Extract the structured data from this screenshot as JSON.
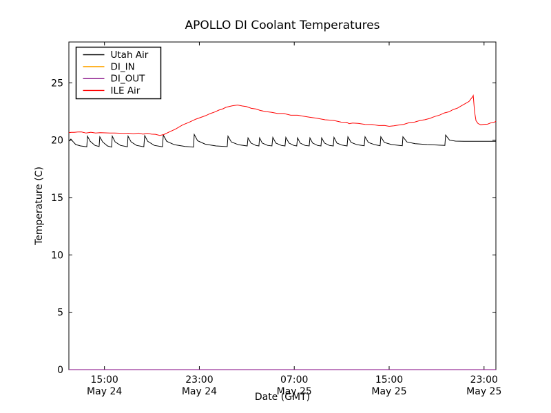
{
  "chart_data": {
    "type": "line",
    "title": "APOLLO DI Coolant Temperatures",
    "xlabel": "Date (GMT)",
    "ylabel": "Temperature (C)",
    "x_axis_note": "hours since May 24 12:00 GMT, total span 36 h",
    "xlim_hours": [
      0,
      36
    ],
    "ylim": [
      0,
      28.56
    ],
    "y_ticks": [
      0,
      5,
      10,
      15,
      20,
      25
    ],
    "x_ticks": [
      {
        "pos": 3,
        "time": "15:00",
        "date": "May 24"
      },
      {
        "pos": 11,
        "time": "23:00",
        "date": "May 24"
      },
      {
        "pos": 19,
        "time": "07:00",
        "date": "May 25"
      },
      {
        "pos": 27,
        "time": "15:00",
        "date": "May 25"
      },
      {
        "pos": 35,
        "time": "23:00",
        "date": "May 25"
      }
    ],
    "legend_position": "upper-left",
    "grid": false,
    "series": [
      {
        "name": "Utah Air",
        "color": "#000000",
        "points": [
          [
            0,
            19.9
          ],
          [
            0.17,
            20.1
          ],
          [
            0.35,
            19.88
          ],
          [
            0.58,
            19.62
          ],
          [
            0.99,
            19.5
          ],
          [
            1.51,
            19.42
          ],
          [
            1.57,
            20.35
          ],
          [
            1.8,
            19.9
          ],
          [
            2.2,
            19.55
          ],
          [
            2.55,
            19.45
          ],
          [
            2.61,
            20.3
          ],
          [
            2.85,
            19.85
          ],
          [
            3.25,
            19.5
          ],
          [
            3.6,
            19.4
          ],
          [
            3.66,
            20.35
          ],
          [
            3.9,
            19.85
          ],
          [
            4.35,
            19.55
          ],
          [
            4.93,
            19.42
          ],
          [
            4.99,
            20.35
          ],
          [
            5.25,
            19.85
          ],
          [
            5.7,
            19.55
          ],
          [
            6.32,
            19.42
          ],
          [
            6.39,
            20.4
          ],
          [
            6.65,
            19.9
          ],
          [
            7.2,
            19.55
          ],
          [
            7.89,
            19.42
          ],
          [
            7.96,
            20.45
          ],
          [
            8.25,
            19.9
          ],
          [
            8.9,
            19.6
          ],
          [
            9.8,
            19.45
          ],
          [
            10.51,
            19.4
          ],
          [
            10.57,
            20.5
          ],
          [
            10.85,
            19.95
          ],
          [
            11.5,
            19.65
          ],
          [
            12.4,
            19.5
          ],
          [
            13.35,
            19.44
          ],
          [
            13.41,
            20.35
          ],
          [
            13.7,
            19.85
          ],
          [
            14.3,
            19.6
          ],
          [
            15.03,
            19.5
          ],
          [
            15.1,
            20.2
          ],
          [
            15.35,
            19.75
          ],
          [
            15.75,
            19.55
          ],
          [
            16.02,
            19.5
          ],
          [
            16.08,
            20.2
          ],
          [
            16.3,
            19.75
          ],
          [
            16.75,
            19.55
          ],
          [
            17.12,
            19.5
          ],
          [
            17.19,
            20.25
          ],
          [
            17.45,
            19.75
          ],
          [
            17.9,
            19.55
          ],
          [
            18.22,
            19.5
          ],
          [
            18.29,
            20.25
          ],
          [
            18.55,
            19.75
          ],
          [
            18.95,
            19.55
          ],
          [
            19.21,
            19.5
          ],
          [
            19.28,
            20.2
          ],
          [
            19.5,
            19.75
          ],
          [
            19.9,
            19.55
          ],
          [
            20.26,
            19.5
          ],
          [
            20.32,
            20.2
          ],
          [
            20.55,
            19.75
          ],
          [
            20.95,
            19.55
          ],
          [
            21.25,
            19.5
          ],
          [
            21.31,
            20.2
          ],
          [
            21.55,
            19.75
          ],
          [
            21.95,
            19.55
          ],
          [
            22.29,
            19.5
          ],
          [
            22.35,
            20.25
          ],
          [
            22.6,
            19.75
          ],
          [
            23.0,
            19.58
          ],
          [
            23.45,
            19.5
          ],
          [
            23.52,
            20.3
          ],
          [
            23.8,
            19.8
          ],
          [
            24.3,
            19.6
          ],
          [
            24.9,
            19.52
          ],
          [
            24.97,
            20.3
          ],
          [
            25.25,
            19.8
          ],
          [
            25.8,
            19.6
          ],
          [
            26.24,
            19.52
          ],
          [
            26.3,
            20.3
          ],
          [
            26.6,
            19.8
          ],
          [
            27.2,
            19.62
          ],
          [
            28.11,
            19.52
          ],
          [
            28.16,
            20.3
          ],
          [
            28.5,
            19.85
          ],
          [
            29.2,
            19.7
          ],
          [
            30.2,
            19.62
          ],
          [
            31.7,
            19.55
          ],
          [
            31.76,
            20.45
          ],
          [
            32.1,
            20.0
          ],
          [
            32.6,
            19.92
          ],
          [
            33.3,
            19.9
          ],
          [
            34.5,
            19.9
          ],
          [
            36,
            19.9
          ]
        ]
      },
      {
        "name": "DI_IN",
        "color": "#ffa500",
        "points": [
          [
            0,
            0
          ],
          [
            36,
            0
          ]
        ]
      },
      {
        "name": "DI_OUT",
        "color": "#800080",
        "points": [
          [
            0,
            0
          ],
          [
            36,
            0
          ]
        ]
      },
      {
        "name": "ILE Air",
        "color": "#ff0000",
        "noise": 0.025,
        "points": [
          [
            0,
            20.65
          ],
          [
            0.2,
            20.7
          ],
          [
            0.45,
            20.66
          ],
          [
            0.75,
            20.74
          ],
          [
            1.05,
            20.7
          ],
          [
            1.45,
            20.64
          ],
          [
            1.85,
            20.68
          ],
          [
            2.25,
            20.63
          ],
          [
            2.65,
            20.67
          ],
          [
            3.05,
            20.62
          ],
          [
            3.45,
            20.65
          ],
          [
            3.85,
            20.6
          ],
          [
            4.25,
            20.63
          ],
          [
            4.65,
            20.58
          ],
          [
            5.05,
            20.61
          ],
          [
            5.45,
            20.56
          ],
          [
            5.85,
            20.6
          ],
          [
            6.25,
            20.55
          ],
          [
            6.6,
            20.57
          ],
          [
            6.97,
            20.55
          ],
          [
            7.3,
            20.5
          ],
          [
            7.66,
            20.42
          ],
          [
            8.0,
            20.5
          ],
          [
            8.42,
            20.68
          ],
          [
            9.0,
            21.0
          ],
          [
            9.58,
            21.3
          ],
          [
            10.16,
            21.6
          ],
          [
            10.7,
            21.82
          ],
          [
            11.15,
            22.0
          ],
          [
            11.55,
            22.15
          ],
          [
            11.9,
            22.3
          ],
          [
            12.3,
            22.48
          ],
          [
            12.66,
            22.6
          ],
          [
            13.0,
            22.76
          ],
          [
            13.24,
            22.85
          ],
          [
            13.76,
            23.0
          ],
          [
            14.0,
            23.04
          ],
          [
            14.23,
            23.05
          ],
          [
            14.63,
            23.0
          ],
          [
            14.98,
            22.9
          ],
          [
            15.38,
            22.8
          ],
          [
            15.79,
            22.7
          ],
          [
            16.14,
            22.6
          ],
          [
            16.6,
            22.5
          ],
          [
            17.07,
            22.42
          ],
          [
            17.6,
            22.35
          ],
          [
            18.12,
            22.3
          ],
          [
            18.7,
            22.2
          ],
          [
            19.28,
            22.16
          ],
          [
            19.74,
            22.1
          ],
          [
            20.32,
            22.0
          ],
          [
            20.9,
            21.9
          ],
          [
            21.6,
            21.8
          ],
          [
            22.3,
            21.7
          ],
          [
            22.94,
            21.6
          ],
          [
            23.4,
            21.55
          ],
          [
            23.63,
            21.45
          ],
          [
            23.92,
            21.5
          ],
          [
            24.39,
            21.45
          ],
          [
            24.97,
            21.4
          ],
          [
            25.55,
            21.34
          ],
          [
            26.13,
            21.3
          ],
          [
            26.6,
            21.26
          ],
          [
            27.0,
            21.22
          ],
          [
            27.4,
            21.25
          ],
          [
            27.76,
            21.3
          ],
          [
            28.22,
            21.4
          ],
          [
            28.68,
            21.5
          ],
          [
            29.15,
            21.6
          ],
          [
            29.61,
            21.7
          ],
          [
            30.02,
            21.8
          ],
          [
            30.43,
            21.9
          ],
          [
            30.83,
            22.05
          ],
          [
            31.24,
            22.2
          ],
          [
            31.65,
            22.35
          ],
          [
            32.05,
            22.5
          ],
          [
            32.4,
            22.65
          ],
          [
            32.75,
            22.8
          ],
          [
            33.1,
            23.0
          ],
          [
            33.45,
            23.2
          ],
          [
            33.74,
            23.4
          ],
          [
            33.91,
            23.6
          ],
          [
            34.03,
            23.8
          ],
          [
            34.09,
            23.87
          ],
          [
            34.2,
            22.5
          ],
          [
            34.32,
            21.7
          ],
          [
            34.49,
            21.45
          ],
          [
            34.72,
            21.36
          ],
          [
            35.0,
            21.36
          ],
          [
            35.3,
            21.42
          ],
          [
            35.6,
            21.5
          ],
          [
            35.9,
            21.6
          ],
          [
            36,
            21.65
          ]
        ]
      }
    ],
    "legend": [
      "Utah Air",
      "DI_IN",
      "DI_OUT",
      "ILE Air"
    ]
  }
}
